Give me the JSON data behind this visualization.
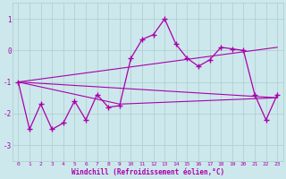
{
  "xlabel": "Windchill (Refroidissement éolien,°C)",
  "bg_color": "#cce8ec",
  "grid_color": "#aacccc",
  "line_color": "#aa00aa",
  "xlim": [
    -0.5,
    23.5
  ],
  "ylim": [
    -3.5,
    1.5
  ],
  "yticks": [
    -3,
    -2,
    -1,
    0,
    1
  ],
  "xticks": [
    0,
    1,
    2,
    3,
    4,
    5,
    6,
    7,
    8,
    9,
    10,
    11,
    12,
    13,
    14,
    15,
    16,
    17,
    18,
    19,
    20,
    21,
    22,
    23
  ],
  "series1_x": [
    0,
    1,
    2,
    3,
    4,
    5,
    6,
    7,
    8,
    9,
    10,
    11,
    12,
    13,
    14,
    15,
    16,
    17,
    18,
    19,
    20,
    21,
    22,
    23
  ],
  "series1_y": [
    -1.0,
    -2.5,
    -1.7,
    -2.5,
    -2.3,
    -1.6,
    -2.2,
    -1.4,
    -1.8,
    -1.75,
    -0.25,
    0.35,
    0.5,
    1.0,
    0.2,
    -0.25,
    -0.5,
    -0.3,
    0.1,
    0.05,
    0.0,
    -1.4,
    -2.2,
    -1.4
  ],
  "trend1_x": [
    0,
    23
  ],
  "trend1_y": [
    -1.0,
    -1.5
  ],
  "trend2_x": [
    0,
    23
  ],
  "trend2_y": [
    -1.0,
    0.1
  ],
  "trend3_x": [
    0,
    9,
    23
  ],
  "trend3_y": [
    -1.0,
    -1.7,
    -1.5
  ],
  "figsize": [
    3.2,
    2.0
  ],
  "dpi": 100
}
